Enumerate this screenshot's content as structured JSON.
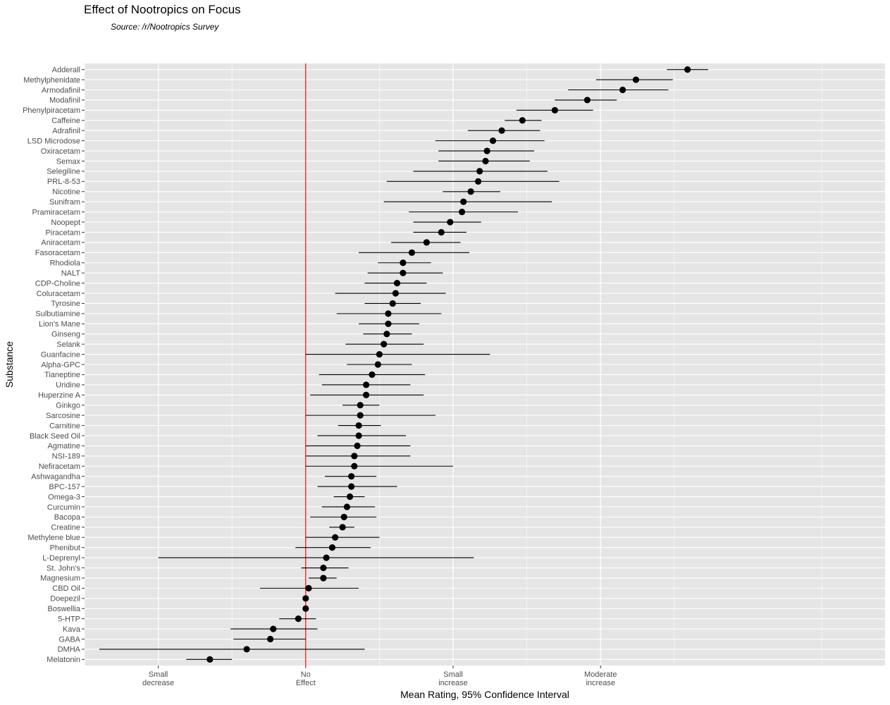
{
  "chart_data": {
    "type": "scatter",
    "title": "Effect of Nootropics on Focus",
    "subtitle": "Source: /r/Nootropics Survey",
    "xlabel": "Mean Rating, 95% Confidence Interval",
    "ylabel": "Substance",
    "xlim": [
      -1.5,
      3.93
    ],
    "x_ticks": [
      {
        "value": -1,
        "label": [
          "Small",
          "decrease"
        ]
      },
      {
        "value": 0,
        "label": [
          "No",
          "Effect"
        ]
      },
      {
        "value": 1,
        "label": [
          "Small",
          "increase"
        ]
      },
      {
        "value": 2,
        "label": [
          "Moderate",
          "increase"
        ]
      }
    ],
    "reference_line": {
      "x": 0,
      "color": "#ff0000"
    },
    "grid": true,
    "colors": {
      "panel": "#e5e5e5",
      "grid": "#ffffff",
      "point": "#000000",
      "axis_text": "#4d4d4d"
    },
    "substances": [
      {
        "name": "Adderall",
        "mean": 2.59,
        "lo": 2.45,
        "hi": 2.73
      },
      {
        "name": "Methylphenidate",
        "mean": 2.24,
        "lo": 1.97,
        "hi": 2.49
      },
      {
        "name": "Armodafinil",
        "mean": 2.15,
        "lo": 1.78,
        "hi": 2.46
      },
      {
        "name": "Modafinil",
        "mean": 1.91,
        "lo": 1.69,
        "hi": 2.11
      },
      {
        "name": "Phenylpiracetam",
        "mean": 1.69,
        "lo": 1.43,
        "hi": 1.95
      },
      {
        "name": "Caffeine",
        "mean": 1.47,
        "lo": 1.35,
        "hi": 1.6
      },
      {
        "name": "Adrafinil",
        "mean": 1.33,
        "lo": 1.1,
        "hi": 1.59
      },
      {
        "name": "LSD Microdose",
        "mean": 1.27,
        "lo": 0.88,
        "hi": 1.62
      },
      {
        "name": "Oxiracetam",
        "mean": 1.23,
        "lo": 0.9,
        "hi": 1.55
      },
      {
        "name": "Semax",
        "mean": 1.22,
        "lo": 0.9,
        "hi": 1.52
      },
      {
        "name": "Selegiline",
        "mean": 1.18,
        "lo": 0.73,
        "hi": 1.64
      },
      {
        "name": "PRL-8-53",
        "mean": 1.17,
        "lo": 0.55,
        "hi": 1.72
      },
      {
        "name": "Nicotine",
        "mean": 1.12,
        "lo": 0.93,
        "hi": 1.32
      },
      {
        "name": "Sunifram",
        "mean": 1.07,
        "lo": 0.53,
        "hi": 1.67
      },
      {
        "name": "Pramiracetam",
        "mean": 1.06,
        "lo": 0.7,
        "hi": 1.44
      },
      {
        "name": "Noopept",
        "mean": 0.98,
        "lo": 0.73,
        "hi": 1.19
      },
      {
        "name": "Piracetam",
        "mean": 0.92,
        "lo": 0.73,
        "hi": 1.09
      },
      {
        "name": "Aniracetam",
        "mean": 0.82,
        "lo": 0.58,
        "hi": 1.05
      },
      {
        "name": "Fasoracetam",
        "mean": 0.72,
        "lo": 0.36,
        "hi": 1.11
      },
      {
        "name": "Rhodiola",
        "mean": 0.66,
        "lo": 0.49,
        "hi": 0.85
      },
      {
        "name": "NALT",
        "mean": 0.66,
        "lo": 0.42,
        "hi": 0.93
      },
      {
        "name": "CDP-Choline",
        "mean": 0.62,
        "lo": 0.4,
        "hi": 0.82
      },
      {
        "name": "Coluracetam",
        "mean": 0.61,
        "lo": 0.2,
        "hi": 0.95
      },
      {
        "name": "Tyrosine",
        "mean": 0.59,
        "lo": 0.4,
        "hi": 0.78
      },
      {
        "name": "Sulbutiamine",
        "mean": 0.56,
        "lo": 0.21,
        "hi": 0.92
      },
      {
        "name": "Lion's Mane",
        "mean": 0.56,
        "lo": 0.36,
        "hi": 0.77
      },
      {
        "name": "Ginseng",
        "mean": 0.55,
        "lo": 0.39,
        "hi": 0.72
      },
      {
        "name": "Selank",
        "mean": 0.53,
        "lo": 0.27,
        "hi": 0.8
      },
      {
        "name": "Guanfacine",
        "mean": 0.5,
        "lo": 0.0,
        "hi": 1.25
      },
      {
        "name": "Alpha-GPC",
        "mean": 0.49,
        "lo": 0.28,
        "hi": 0.72
      },
      {
        "name": "Tianeptine",
        "mean": 0.45,
        "lo": 0.09,
        "hi": 0.81
      },
      {
        "name": "Uridine",
        "mean": 0.41,
        "lo": 0.11,
        "hi": 0.71
      },
      {
        "name": "Huperzine A",
        "mean": 0.41,
        "lo": 0.03,
        "hi": 0.8
      },
      {
        "name": "Ginkgo",
        "mean": 0.37,
        "lo": 0.25,
        "hi": 0.5
      },
      {
        "name": "Sarcosine",
        "mean": 0.37,
        "lo": 0.0,
        "hi": 0.88
      },
      {
        "name": "Carnitine",
        "mean": 0.36,
        "lo": 0.22,
        "hi": 0.51
      },
      {
        "name": "Black Seed Oil",
        "mean": 0.36,
        "lo": 0.08,
        "hi": 0.68
      },
      {
        "name": "Agmatine",
        "mean": 0.35,
        "lo": 0.0,
        "hi": 0.71
      },
      {
        "name": "NSI-189",
        "mean": 0.33,
        "lo": 0.0,
        "hi": 0.71
      },
      {
        "name": "Nefiracetam",
        "mean": 0.33,
        "lo": 0.0,
        "hi": 1.0
      },
      {
        "name": "Ashwagandha",
        "mean": 0.31,
        "lo": 0.13,
        "hi": 0.48
      },
      {
        "name": "BPC-157",
        "mean": 0.31,
        "lo": 0.08,
        "hi": 0.62
      },
      {
        "name": "Omega-3",
        "mean": 0.3,
        "lo": 0.19,
        "hi": 0.4
      },
      {
        "name": "Curcumin",
        "mean": 0.28,
        "lo": 0.11,
        "hi": 0.47
      },
      {
        "name": "Bacopa",
        "mean": 0.26,
        "lo": 0.03,
        "hi": 0.48
      },
      {
        "name": "Creatine",
        "mean": 0.25,
        "lo": 0.16,
        "hi": 0.33
      },
      {
        "name": "Methylene blue",
        "mean": 0.2,
        "lo": 0.0,
        "hi": 0.5
      },
      {
        "name": "Phenibut",
        "mean": 0.18,
        "lo": -0.07,
        "hi": 0.44
      },
      {
        "name": "L-Deprenyl",
        "mean": 0.14,
        "lo": -1.0,
        "hi": 1.14
      },
      {
        "name": "St. John's",
        "mean": 0.12,
        "lo": -0.03,
        "hi": 0.29
      },
      {
        "name": "Magnesium",
        "mean": 0.12,
        "lo": 0.02,
        "hi": 0.21
      },
      {
        "name": "CBD Oil",
        "mean": 0.02,
        "lo": -0.31,
        "hi": 0.36
      },
      {
        "name": "Doepezil",
        "mean": 0.0,
        "lo": 0.0,
        "hi": 0.0
      },
      {
        "name": "Boswellia",
        "mean": 0.0,
        "lo": 0.0,
        "hi": 0.0
      },
      {
        "name": "5-HTP",
        "mean": -0.05,
        "lo": -0.18,
        "hi": 0.07
      },
      {
        "name": "Kava",
        "mean": -0.22,
        "lo": -0.51,
        "hi": 0.08
      },
      {
        "name": "GABA",
        "mean": -0.24,
        "lo": -0.49,
        "hi": 0.0
      },
      {
        "name": "DMHA",
        "mean": -0.4,
        "lo": -1.4,
        "hi": 0.4
      },
      {
        "name": "Melatonin",
        "mean": -0.65,
        "lo": -0.81,
        "hi": -0.5
      }
    ]
  }
}
